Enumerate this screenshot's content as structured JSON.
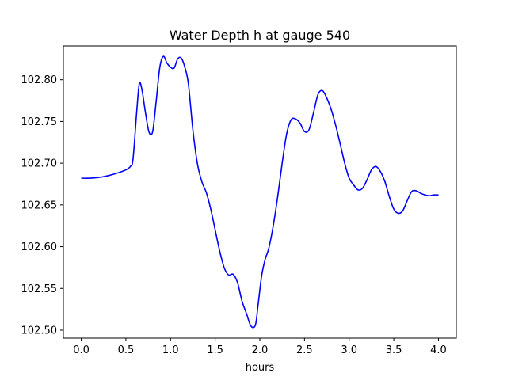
{
  "chart_data": {
    "type": "line",
    "title": "Water Depth h at gauge 540",
    "xlabel": "hours",
    "ylabel": "",
    "xlim": [
      -0.2,
      4.2
    ],
    "ylim": [
      102.4905,
      102.8405
    ],
    "grid": false,
    "legend": "none",
    "x_ticks": [
      0.0,
      0.5,
      1.0,
      1.5,
      2.0,
      2.5,
      3.0,
      3.5,
      4.0
    ],
    "x_tick_labels": [
      "0.0",
      "0.5",
      "1.0",
      "1.5",
      "2.0",
      "2.5",
      "3.0",
      "3.5",
      "4.0"
    ],
    "y_ticks": [
      102.5,
      102.55,
      102.6,
      102.65,
      102.7,
      102.75,
      102.8
    ],
    "y_tick_labels": [
      "102.50",
      "102.55",
      "102.60",
      "102.65",
      "102.70",
      "102.75",
      "102.80"
    ],
    "series": [
      {
        "color": "#0000ff",
        "x": [
          0.0,
          0.1,
          0.2,
          0.3,
          0.4,
          0.5,
          0.55,
          0.58,
          0.62,
          0.65,
          0.68,
          0.72,
          0.76,
          0.8,
          0.84,
          0.88,
          0.92,
          0.96,
          1.0,
          1.04,
          1.08,
          1.12,
          1.16,
          1.2,
          1.25,
          1.3,
          1.35,
          1.4,
          1.45,
          1.5,
          1.55,
          1.6,
          1.65,
          1.7,
          1.75,
          1.8,
          1.85,
          1.9,
          1.95,
          1.98,
          2.02,
          2.06,
          2.1,
          2.15,
          2.2,
          2.25,
          2.3,
          2.35,
          2.4,
          2.45,
          2.5,
          2.55,
          2.6,
          2.65,
          2.7,
          2.75,
          2.8,
          2.85,
          2.9,
          2.95,
          3.0,
          3.05,
          3.1,
          3.15,
          3.2,
          3.25,
          3.3,
          3.35,
          3.4,
          3.45,
          3.5,
          3.55,
          3.6,
          3.65,
          3.7,
          3.75,
          3.8,
          3.85,
          3.9,
          3.95,
          4.0
        ],
        "y": [
          102.682,
          102.682,
          102.683,
          102.685,
          102.688,
          102.692,
          102.696,
          102.705,
          102.76,
          102.795,
          102.788,
          102.76,
          102.737,
          102.738,
          102.775,
          102.815,
          102.828,
          102.82,
          102.815,
          102.814,
          102.825,
          102.826,
          102.815,
          102.795,
          102.74,
          102.7,
          102.678,
          102.665,
          102.645,
          102.62,
          102.595,
          102.575,
          102.566,
          102.567,
          102.557,
          102.535,
          102.52,
          102.505,
          102.506,
          102.53,
          102.565,
          102.585,
          102.598,
          102.625,
          102.66,
          102.7,
          102.735,
          102.752,
          102.753,
          102.748,
          102.738,
          102.74,
          102.76,
          102.782,
          102.787,
          102.778,
          102.764,
          102.745,
          102.723,
          102.7,
          102.682,
          102.674,
          102.668,
          102.67,
          102.68,
          102.692,
          102.696,
          102.69,
          102.678,
          102.66,
          102.645,
          102.64,
          102.643,
          102.655,
          102.666,
          102.667,
          102.664,
          102.662,
          102.661,
          102.662,
          102.662
        ]
      }
    ]
  }
}
